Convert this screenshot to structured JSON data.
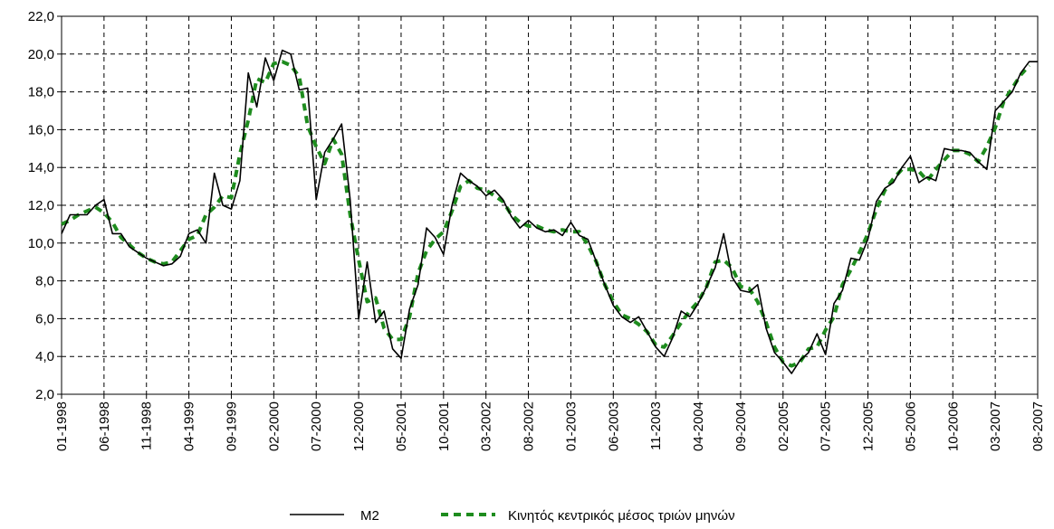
{
  "chart_data": {
    "type": "line",
    "categories": [
      "01-1998",
      null,
      null,
      null,
      null,
      "06-1998",
      null,
      null,
      null,
      null,
      "11-1998",
      null,
      null,
      null,
      null,
      "04-1999",
      null,
      null,
      null,
      null,
      "09-1999",
      null,
      null,
      null,
      null,
      "02-2000",
      null,
      null,
      null,
      null,
      "07-2000",
      null,
      null,
      null,
      null,
      "12-2000",
      null,
      null,
      null,
      null,
      "05-2001",
      null,
      null,
      null,
      null,
      "10-2001",
      null,
      null,
      null,
      null,
      "03-2002",
      null,
      null,
      null,
      null,
      "08-2002",
      null,
      null,
      null,
      null,
      "01-2003",
      null,
      null,
      null,
      null,
      "06-2003",
      null,
      null,
      null,
      null,
      "11-2003",
      null,
      null,
      null,
      null,
      "04-2004",
      null,
      null,
      null,
      null,
      "09-2004",
      null,
      null,
      null,
      null,
      "02-2005",
      null,
      null,
      null,
      null,
      "07-2005",
      null,
      null,
      null,
      null,
      "12-2005",
      null,
      null,
      null,
      null,
      "05-2006",
      null,
      null,
      null,
      null,
      "10-2006",
      null,
      null,
      null,
      null,
      "03-2007",
      null,
      null,
      null,
      null,
      "08-2007"
    ],
    "series": [
      {
        "name": "M2",
        "color": "#000000",
        "style": "solid",
        "values": [
          10.5,
          11.5,
          11.5,
          11.5,
          12.0,
          12.3,
          10.5,
          10.5,
          9.8,
          9.5,
          9.2,
          9.0,
          8.8,
          8.9,
          9.3,
          10.5,
          10.7,
          10.0,
          13.7,
          12.0,
          11.8,
          13.3,
          19.0,
          17.2,
          19.8,
          18.6,
          20.2,
          20.0,
          18.1,
          18.2,
          12.3,
          14.8,
          15.5,
          16.3,
          12.3,
          6.0,
          9.0,
          5.8,
          6.4,
          4.4,
          3.9,
          6.5,
          7.8,
          10.8,
          10.3,
          9.4,
          12.0,
          13.7,
          13.3,
          13.0,
          12.5,
          12.8,
          12.3,
          11.4,
          10.8,
          11.2,
          10.8,
          10.6,
          10.7,
          10.4,
          11.1,
          10.4,
          10.2,
          9.0,
          7.8,
          6.7,
          6.1,
          5.8,
          6.1,
          5.3,
          4.5,
          4.0,
          5.0,
          6.4,
          6.1,
          6.8,
          7.7,
          8.7,
          10.5,
          8.2,
          7.5,
          7.4,
          7.8,
          5.5,
          4.2,
          3.7,
          3.1,
          3.8,
          4.2,
          5.2,
          4.1,
          6.8,
          7.5,
          9.2,
          9.1,
          10.2,
          12.2,
          12.9,
          13.2,
          14.0,
          14.6,
          13.2,
          13.5,
          13.3,
          15.0,
          14.9,
          14.9,
          14.8,
          14.3,
          13.9,
          17.0,
          17.5,
          18.0,
          19.0,
          19.6,
          19.6
        ]
      },
      {
        "name": "Κινητός κεντρικός μέσος τριών μηνών",
        "color": "#1e8c1e",
        "style": "dashed",
        "values": [
          11.0,
          11.2,
          11.5,
          11.7,
          11.9,
          11.6,
          11.1,
          10.3,
          9.9,
          9.5,
          9.2,
          9.0,
          8.9,
          9.0,
          9.6,
          10.2,
          10.4,
          11.5,
          11.9,
          12.5,
          12.4,
          14.7,
          16.5,
          18.7,
          18.5,
          19.5,
          19.6,
          19.4,
          18.8,
          16.2,
          15.1,
          14.2,
          15.5,
          14.7,
          11.5,
          9.1,
          6.9,
          7.1,
          5.5,
          4.9,
          4.9,
          6.1,
          8.4,
          9.6,
          10.2,
          10.6,
          11.7,
          13.0,
          13.3,
          12.9,
          12.8,
          12.5,
          12.2,
          11.5,
          11.1,
          10.9,
          10.9,
          10.7,
          10.6,
          10.7,
          10.6,
          10.6,
          9.9,
          9.0,
          7.8,
          6.9,
          6.2,
          6.0,
          5.7,
          5.3,
          4.6,
          4.5,
          5.1,
          5.8,
          6.4,
          6.9,
          7.7,
          9.0,
          9.1,
          8.7,
          7.7,
          7.6,
          6.9,
          5.8,
          4.5,
          3.7,
          3.5,
          3.7,
          4.4,
          4.5,
          5.4,
          6.1,
          7.8,
          8.6,
          9.5,
          10.5,
          11.8,
          12.8,
          13.4,
          13.9,
          13.9,
          13.8,
          13.3,
          13.9,
          14.4,
          14.9,
          14.9,
          14.7,
          14.3,
          15.1,
          16.1,
          17.5,
          18.2,
          18.9,
          19.4,
          null
        ]
      }
    ],
    "ylim": [
      2,
      22
    ],
    "yticks": [
      {
        "value": 2,
        "label": "2,0"
      },
      {
        "value": 4,
        "label": "4,0"
      },
      {
        "value": 6,
        "label": "6,0"
      },
      {
        "value": 8,
        "label": "8,0"
      },
      {
        "value": 10,
        "label": "10,0"
      },
      {
        "value": 12,
        "label": "12,0"
      },
      {
        "value": 14,
        "label": "14,0"
      },
      {
        "value": 16,
        "label": "16,0"
      },
      {
        "value": 18,
        "label": "18,0"
      },
      {
        "value": 20,
        "label": "20,0"
      },
      {
        "value": 22,
        "label": "22,0"
      }
    ],
    "grid": true,
    "legend": "bottom"
  }
}
